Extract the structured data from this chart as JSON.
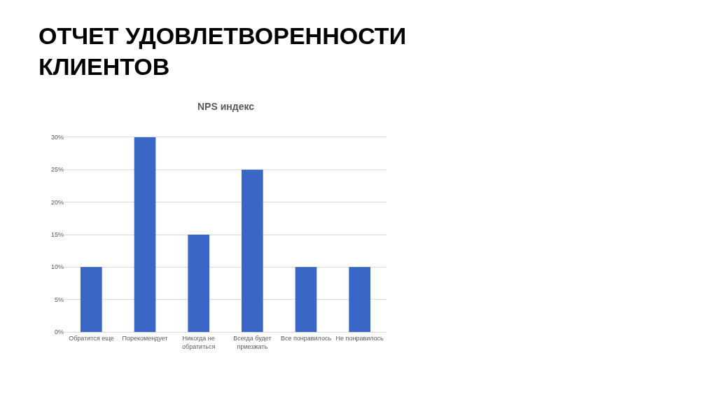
{
  "chart_data": {
    "type": "bar",
    "title": "ОТЧЕТ УДОВЛЕТВОРЕННОСТИ\nКЛИЕНТОВ",
    "subtitle": "NPS индекс",
    "categories": [
      "Обратится еще",
      "Порекомендует",
      "Никогда не\nобратиться",
      "Всегда будет\nприезжать",
      "Все понравилось",
      "Не понравилось"
    ],
    "values": [
      10,
      30,
      15,
      25,
      10,
      10
    ],
    "color": "#3a67c6",
    "ylim": [
      0,
      30
    ],
    "yticks": [
      {
        "value": 0,
        "label": "0%"
      },
      {
        "value": 5,
        "label": "5%"
      },
      {
        "value": 10,
        "label": "10%"
      },
      {
        "value": 15,
        "label": "15%"
      },
      {
        "value": 20,
        "label": "20%"
      },
      {
        "value": 25,
        "label": "25%"
      },
      {
        "value": 30,
        "label": "30%"
      }
    ],
    "grid": "y"
  }
}
